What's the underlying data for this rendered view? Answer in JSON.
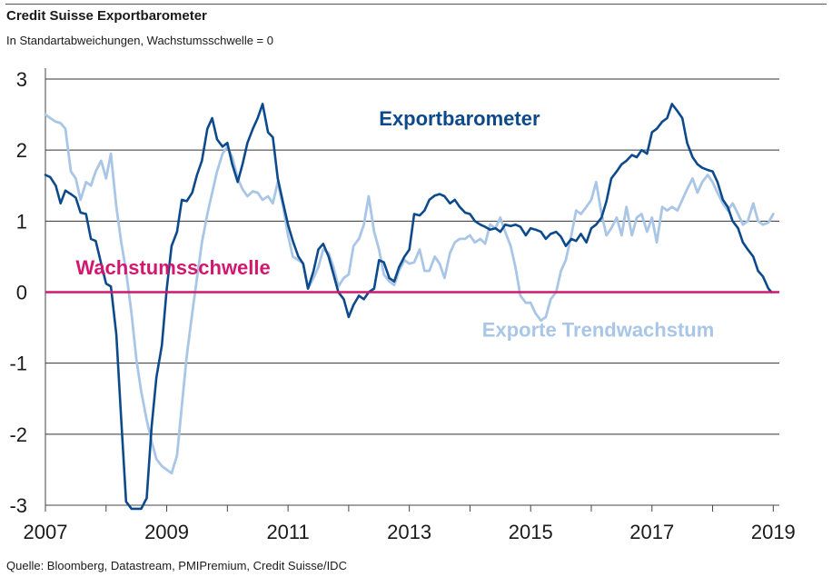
{
  "header": {
    "title": "Credit Suisse Exportbarometer",
    "subtitle": "In Standartabweichungen, Wachstumsschwelle = 0"
  },
  "footer": {
    "source": "Quelle: Bloomberg, Datastream, PMIPremium, Credit Suisse/IDC"
  },
  "colors": {
    "exportbarometer": "#0d4a8c",
    "trendwachstum": "#a9c6e6",
    "threshold": "#d2186e",
    "grid": "#333333"
  },
  "chart_data": {
    "type": "line",
    "title": "Credit Suisse Exportbarometer",
    "subtitle": "In Standartabweichungen, Wachstumsschwelle = 0",
    "xlim": [
      2007,
      2019.1
    ],
    "ylim": [
      -3,
      3
    ],
    "x_ticks": [
      "2007",
      "2009",
      "2011",
      "2013",
      "2015",
      "2017",
      "2019"
    ],
    "y_ticks": [
      "3",
      "2",
      "1",
      "0",
      "-1",
      "-2",
      "-3"
    ],
    "grid": "horizontal",
    "threshold": {
      "label": "Wachstumsschwelle",
      "value": 0
    },
    "series": [
      {
        "name": "Exportbarometer",
        "points": [
          [
            2007.0,
            1.65
          ],
          [
            2007.08,
            1.62
          ],
          [
            2007.17,
            1.5
          ],
          [
            2007.25,
            1.25
          ],
          [
            2007.33,
            1.43
          ],
          [
            2007.42,
            1.38
          ],
          [
            2007.5,
            1.33
          ],
          [
            2007.58,
            1.12
          ],
          [
            2007.67,
            1.1
          ],
          [
            2007.75,
            0.75
          ],
          [
            2007.83,
            0.72
          ],
          [
            2007.92,
            0.4
          ],
          [
            2008.0,
            0.12
          ],
          [
            2008.08,
            0.08
          ],
          [
            2008.17,
            -0.6
          ],
          [
            2008.25,
            -1.8
          ],
          [
            2008.33,
            -2.95
          ],
          [
            2008.42,
            -3.05
          ],
          [
            2008.5,
            -3.05
          ],
          [
            2008.58,
            -3.05
          ],
          [
            2008.67,
            -2.9
          ],
          [
            2008.75,
            -1.9
          ],
          [
            2008.83,
            -1.2
          ],
          [
            2008.92,
            -0.75
          ],
          [
            2009.0,
            0.05
          ],
          [
            2009.08,
            0.65
          ],
          [
            2009.17,
            0.85
          ],
          [
            2009.25,
            1.3
          ],
          [
            2009.33,
            1.28
          ],
          [
            2009.42,
            1.4
          ],
          [
            2009.5,
            1.65
          ],
          [
            2009.58,
            1.85
          ],
          [
            2009.67,
            2.3
          ],
          [
            2009.75,
            2.45
          ],
          [
            2009.83,
            2.15
          ],
          [
            2009.92,
            2.05
          ],
          [
            2010.0,
            2.1
          ],
          [
            2010.08,
            1.8
          ],
          [
            2010.17,
            1.55
          ],
          [
            2010.25,
            1.8
          ],
          [
            2010.33,
            2.1
          ],
          [
            2010.42,
            2.3
          ],
          [
            2010.5,
            2.45
          ],
          [
            2010.58,
            2.65
          ],
          [
            2010.67,
            2.25
          ],
          [
            2010.75,
            2.18
          ],
          [
            2010.83,
            1.6
          ],
          [
            2010.92,
            1.25
          ],
          [
            2011.0,
            0.95
          ],
          [
            2011.08,
            0.72
          ],
          [
            2011.17,
            0.5
          ],
          [
            2011.25,
            0.4
          ],
          [
            2011.33,
            0.05
          ],
          [
            2011.42,
            0.3
          ],
          [
            2011.5,
            0.6
          ],
          [
            2011.58,
            0.68
          ],
          [
            2011.67,
            0.5
          ],
          [
            2011.75,
            0.25
          ],
          [
            2011.83,
            0.0
          ],
          [
            2011.92,
            -0.1
          ],
          [
            2012.0,
            -0.35
          ],
          [
            2012.08,
            -0.18
          ],
          [
            2012.17,
            -0.05
          ],
          [
            2012.25,
            -0.1
          ],
          [
            2012.33,
            0.0
          ],
          [
            2012.42,
            0.05
          ],
          [
            2012.5,
            0.45
          ],
          [
            2012.58,
            0.42
          ],
          [
            2012.67,
            0.2
          ],
          [
            2012.75,
            0.15
          ],
          [
            2012.83,
            0.35
          ],
          [
            2012.92,
            0.5
          ],
          [
            2013.0,
            0.6
          ],
          [
            2013.08,
            1.1
          ],
          [
            2013.17,
            1.08
          ],
          [
            2013.25,
            1.15
          ],
          [
            2013.33,
            1.3
          ],
          [
            2013.42,
            1.36
          ],
          [
            2013.5,
            1.38
          ],
          [
            2013.58,
            1.35
          ],
          [
            2013.67,
            1.25
          ],
          [
            2013.75,
            1.3
          ],
          [
            2013.83,
            1.2
          ],
          [
            2013.92,
            1.12
          ],
          [
            2014.0,
            1.1
          ],
          [
            2014.08,
            1.0
          ],
          [
            2014.17,
            0.95
          ],
          [
            2014.25,
            0.92
          ],
          [
            2014.33,
            0.88
          ],
          [
            2014.42,
            0.9
          ],
          [
            2014.5,
            0.85
          ],
          [
            2014.58,
            0.95
          ],
          [
            2014.67,
            0.93
          ],
          [
            2014.75,
            0.95
          ],
          [
            2014.83,
            0.92
          ],
          [
            2014.92,
            0.8
          ],
          [
            2015.0,
            0.9
          ],
          [
            2015.08,
            0.88
          ],
          [
            2015.17,
            0.85
          ],
          [
            2015.25,
            0.75
          ],
          [
            2015.33,
            0.82
          ],
          [
            2015.42,
            0.85
          ],
          [
            2015.5,
            0.78
          ],
          [
            2015.58,
            0.65
          ],
          [
            2015.67,
            0.75
          ],
          [
            2015.75,
            0.72
          ],
          [
            2015.83,
            0.82
          ],
          [
            2015.92,
            0.7
          ],
          [
            2016.0,
            0.9
          ],
          [
            2016.08,
            0.95
          ],
          [
            2016.17,
            1.05
          ],
          [
            2016.25,
            1.28
          ],
          [
            2016.33,
            1.6
          ],
          [
            2016.42,
            1.7
          ],
          [
            2016.5,
            1.8
          ],
          [
            2016.58,
            1.85
          ],
          [
            2016.67,
            1.93
          ],
          [
            2016.75,
            1.9
          ],
          [
            2016.83,
            2.0
          ],
          [
            2016.92,
            1.95
          ],
          [
            2017.0,
            2.25
          ],
          [
            2017.08,
            2.3
          ],
          [
            2017.17,
            2.4
          ],
          [
            2017.25,
            2.45
          ],
          [
            2017.33,
            2.65
          ],
          [
            2017.42,
            2.55
          ],
          [
            2017.5,
            2.45
          ],
          [
            2017.58,
            2.1
          ],
          [
            2017.67,
            1.9
          ],
          [
            2017.75,
            1.8
          ],
          [
            2017.83,
            1.75
          ],
          [
            2017.92,
            1.72
          ],
          [
            2018.0,
            1.7
          ],
          [
            2018.08,
            1.55
          ],
          [
            2018.17,
            1.3
          ],
          [
            2018.25,
            1.2
          ],
          [
            2018.33,
            1.0
          ],
          [
            2018.42,
            0.9
          ],
          [
            2018.5,
            0.7
          ],
          [
            2018.58,
            0.6
          ],
          [
            2018.67,
            0.5
          ],
          [
            2018.75,
            0.3
          ],
          [
            2018.83,
            0.22
          ],
          [
            2018.92,
            0.05
          ],
          [
            2018.97,
            0.0
          ]
        ]
      },
      {
        "name": "Exporte Trendwachstum",
        "points": [
          [
            2007.0,
            2.5
          ],
          [
            2007.08,
            2.45
          ],
          [
            2007.17,
            2.4
          ],
          [
            2007.25,
            2.38
          ],
          [
            2007.33,
            2.3
          ],
          [
            2007.42,
            1.7
          ],
          [
            2007.5,
            1.6
          ],
          [
            2007.58,
            1.3
          ],
          [
            2007.67,
            1.55
          ],
          [
            2007.75,
            1.5
          ],
          [
            2007.83,
            1.7
          ],
          [
            2007.92,
            1.85
          ],
          [
            2008.0,
            1.6
          ],
          [
            2008.08,
            1.95
          ],
          [
            2008.17,
            1.2
          ],
          [
            2008.25,
            0.7
          ],
          [
            2008.33,
            0.3
          ],
          [
            2008.42,
            -0.3
          ],
          [
            2008.5,
            -0.95
          ],
          [
            2008.58,
            -1.4
          ],
          [
            2008.67,
            -1.8
          ],
          [
            2008.75,
            -2.1
          ],
          [
            2008.83,
            -2.35
          ],
          [
            2008.92,
            -2.45
          ],
          [
            2009.0,
            -2.5
          ],
          [
            2009.08,
            -2.55
          ],
          [
            2009.17,
            -2.3
          ],
          [
            2009.25,
            -1.6
          ],
          [
            2009.33,
            -0.9
          ],
          [
            2009.42,
            -0.3
          ],
          [
            2009.5,
            0.2
          ],
          [
            2009.58,
            0.7
          ],
          [
            2009.67,
            1.1
          ],
          [
            2009.75,
            1.4
          ],
          [
            2009.83,
            1.7
          ],
          [
            2009.92,
            1.95
          ],
          [
            2010.0,
            2.05
          ],
          [
            2010.08,
            1.9
          ],
          [
            2010.17,
            1.6
          ],
          [
            2010.25,
            1.45
          ],
          [
            2010.33,
            1.35
          ],
          [
            2010.42,
            1.42
          ],
          [
            2010.5,
            1.4
          ],
          [
            2010.58,
            1.3
          ],
          [
            2010.67,
            1.35
          ],
          [
            2010.75,
            1.25
          ],
          [
            2010.83,
            1.55
          ],
          [
            2010.92,
            1.2
          ],
          [
            2011.0,
            0.8
          ],
          [
            2011.08,
            0.5
          ],
          [
            2011.17,
            0.45
          ],
          [
            2011.25,
            0.4
          ],
          [
            2011.33,
            0.05
          ],
          [
            2011.42,
            0.2
          ],
          [
            2011.5,
            0.35
          ],
          [
            2011.58,
            0.6
          ],
          [
            2011.67,
            0.55
          ],
          [
            2011.75,
            0.35
          ],
          [
            2011.83,
            0.08
          ],
          [
            2011.92,
            0.2
          ],
          [
            2012.0,
            0.25
          ],
          [
            2012.08,
            0.65
          ],
          [
            2012.17,
            0.75
          ],
          [
            2012.25,
            0.95
          ],
          [
            2012.33,
            1.35
          ],
          [
            2012.42,
            0.85
          ],
          [
            2012.5,
            0.6
          ],
          [
            2012.58,
            0.25
          ],
          [
            2012.67,
            0.15
          ],
          [
            2012.75,
            0.1
          ],
          [
            2012.83,
            0.3
          ],
          [
            2012.92,
            0.45
          ],
          [
            2013.0,
            0.4
          ],
          [
            2013.08,
            0.42
          ],
          [
            2013.17,
            0.6
          ],
          [
            2013.25,
            0.3
          ],
          [
            2013.33,
            0.3
          ],
          [
            2013.42,
            0.5
          ],
          [
            2013.5,
            0.4
          ],
          [
            2013.58,
            0.2
          ],
          [
            2013.67,
            0.55
          ],
          [
            2013.75,
            0.7
          ],
          [
            2013.83,
            0.75
          ],
          [
            2013.92,
            0.75
          ],
          [
            2014.0,
            0.8
          ],
          [
            2014.08,
            0.7
          ],
          [
            2014.17,
            0.75
          ],
          [
            2014.25,
            0.68
          ],
          [
            2014.33,
            0.95
          ],
          [
            2014.42,
            0.9
          ],
          [
            2014.5,
            1.05
          ],
          [
            2014.58,
            0.85
          ],
          [
            2014.67,
            0.65
          ],
          [
            2014.75,
            0.35
          ],
          [
            2014.83,
            -0.05
          ],
          [
            2014.92,
            -0.15
          ],
          [
            2015.0,
            -0.15
          ],
          [
            2015.08,
            -0.3
          ],
          [
            2015.17,
            -0.4
          ],
          [
            2015.25,
            -0.35
          ],
          [
            2015.33,
            -0.1
          ],
          [
            2015.42,
            0.0
          ],
          [
            2015.5,
            0.3
          ],
          [
            2015.58,
            0.45
          ],
          [
            2015.67,
            0.8
          ],
          [
            2015.75,
            1.15
          ],
          [
            2015.83,
            1.1
          ],
          [
            2015.92,
            1.2
          ],
          [
            2016.0,
            1.3
          ],
          [
            2016.08,
            1.55
          ],
          [
            2016.17,
            1.1
          ],
          [
            2016.25,
            0.8
          ],
          [
            2016.33,
            0.9
          ],
          [
            2016.42,
            1.05
          ],
          [
            2016.5,
            0.8
          ],
          [
            2016.58,
            1.2
          ],
          [
            2016.67,
            0.8
          ],
          [
            2016.75,
            1.05
          ],
          [
            2016.83,
            1.1
          ],
          [
            2016.92,
            0.85
          ],
          [
            2017.0,
            1.05
          ],
          [
            2017.08,
            0.7
          ],
          [
            2017.17,
            1.2
          ],
          [
            2017.25,
            1.15
          ],
          [
            2017.33,
            1.2
          ],
          [
            2017.42,
            1.15
          ],
          [
            2017.5,
            1.3
          ],
          [
            2017.58,
            1.45
          ],
          [
            2017.67,
            1.6
          ],
          [
            2017.75,
            1.4
          ],
          [
            2017.83,
            1.55
          ],
          [
            2017.92,
            1.65
          ],
          [
            2018.0,
            1.55
          ],
          [
            2018.08,
            1.4
          ],
          [
            2018.17,
            1.25
          ],
          [
            2018.25,
            1.15
          ],
          [
            2018.33,
            1.25
          ],
          [
            2018.42,
            1.1
          ],
          [
            2018.5,
            0.95
          ],
          [
            2018.58,
            1.0
          ],
          [
            2018.67,
            1.25
          ],
          [
            2018.75,
            1.0
          ],
          [
            2018.83,
            0.95
          ],
          [
            2018.92,
            0.98
          ],
          [
            2019.0,
            1.1
          ]
        ]
      }
    ],
    "annotations": [
      {
        "text": "Exportbarometer",
        "series": "Exportbarometer",
        "x": 2012.5,
        "y": 2.35
      },
      {
        "text": "Wachstumsschwelle",
        "series": "threshold",
        "x": 2007.5,
        "y": 0.25
      },
      {
        "text": "Exporte Trendwachstum",
        "series": "Exporte Trendwachstum",
        "x": 2014.2,
        "y": -0.63
      }
    ]
  }
}
